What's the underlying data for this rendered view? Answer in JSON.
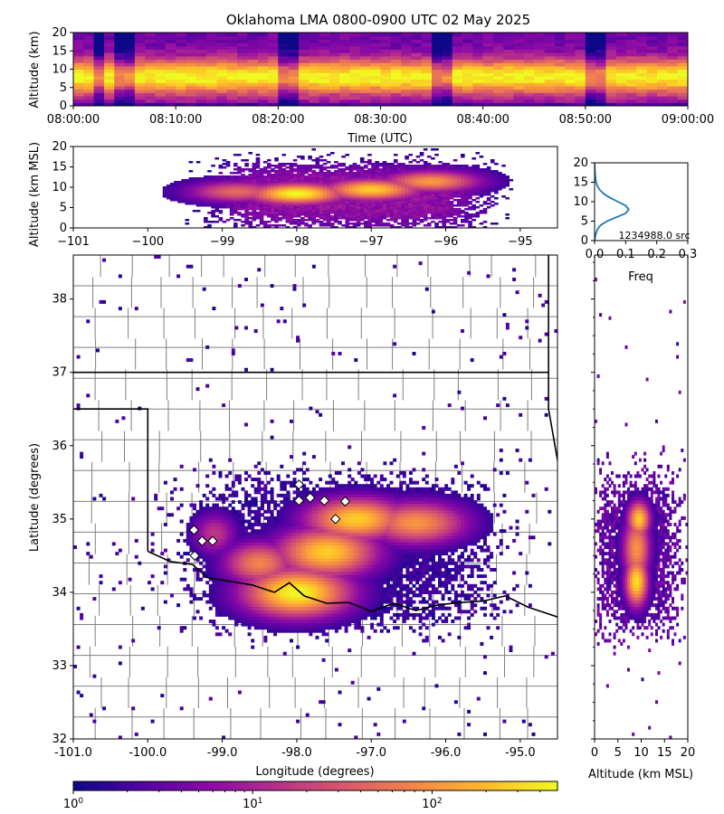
{
  "figure": {
    "title": "Oklahoma LMA 0800-0900 UTC 02 May 2025"
  },
  "chart_data": [
    {
      "id": "time-height",
      "type": "heatmap",
      "xlabel": "Time (UTC)",
      "ylabel": "Altitude (km)",
      "xlim": [
        "08:00:00",
        "09:00:00"
      ],
      "ylim": [
        0,
        20
      ],
      "xticks": [
        "08:00:00",
        "08:10:00",
        "08:20:00",
        "08:30:00",
        "08:40:00",
        "08:50:00",
        "09:00:00"
      ],
      "yticks": [
        "0",
        "5",
        "10",
        "15",
        "20"
      ],
      "colormap": "plasma",
      "color_scale": "log",
      "density_peak_altitude_km": 8,
      "low_density_minutes": [
        2,
        4,
        5,
        20,
        21,
        35,
        36,
        50,
        51
      ]
    },
    {
      "id": "lon-alt",
      "type": "heatmap",
      "xlabel": "",
      "ylabel": "Altitude (km MSL)",
      "xlim": [
        -101,
        -94.5
      ],
      "ylim": [
        0,
        20
      ],
      "xticks": [
        "−101",
        "−100",
        "−99",
        "−98",
        "−97",
        "−96",
        "−95"
      ],
      "yticks": [
        "0",
        "5",
        "10",
        "15",
        "20"
      ],
      "colormap": "plasma",
      "color_scale": "log",
      "cores": [
        {
          "lon": -98.0,
          "alt": 8.5,
          "intensity": 1.0
        },
        {
          "lon": -97.0,
          "alt": 9.5,
          "intensity": 0.9
        },
        {
          "lon": -96.2,
          "alt": 11.5,
          "intensity": 0.75
        },
        {
          "lon": -98.8,
          "alt": 9.0,
          "intensity": 0.6
        }
      ]
    },
    {
      "id": "alt-histogram",
      "type": "line",
      "xlabel": "Freq",
      "ylabel": "",
      "xlim": [
        0,
        0.3
      ],
      "ylim": [
        0,
        20
      ],
      "xticks": [
        "0.0",
        "0.1",
        "0.2",
        "0.3"
      ],
      "yticks": [
        "0",
        "5",
        "10",
        "15",
        "20"
      ],
      "annotation": "1234988.0 src",
      "series_color": "#1f77b4",
      "x": [
        0.0,
        0.002,
        0.005,
        0.01,
        0.02,
        0.04,
        0.07,
        0.1,
        0.11,
        0.1,
        0.075,
        0.05,
        0.03,
        0.017,
        0.009,
        0.005,
        0.003,
        0.002,
        0.001,
        0.0005,
        0.0
      ],
      "y": [
        0,
        1,
        2,
        3,
        4,
        5,
        6,
        7,
        8,
        9,
        10,
        11,
        12,
        13,
        14,
        15,
        16,
        17,
        18,
        19,
        20
      ]
    },
    {
      "id": "plan-view",
      "type": "heatmap",
      "xlabel": "Longitude (degrees)",
      "ylabel": "Latitude (degrees)",
      "xlim": [
        -101,
        -94.5
      ],
      "ylim": [
        32,
        38.6
      ],
      "xticks": [
        "-101.0",
        "-100.0",
        "-99.0",
        "-98.0",
        "-97.0",
        "-96.0",
        "-95.0"
      ],
      "yticks": [
        "32",
        "33",
        "34",
        "35",
        "36",
        "37",
        "38"
      ],
      "colormap": "plasma",
      "color_scale": "log",
      "stations": [
        {
          "lon": -97.97,
          "lat": 35.47
        },
        {
          "lon": -97.82,
          "lat": 35.29
        },
        {
          "lon": -97.97,
          "lat": 35.25
        },
        {
          "lon": -97.63,
          "lat": 35.25
        },
        {
          "lon": -97.35,
          "lat": 35.24
        },
        {
          "lon": -97.48,
          "lat": 35.0
        },
        {
          "lon": -99.38,
          "lat": 34.85
        },
        {
          "lon": -99.27,
          "lat": 34.7
        },
        {
          "lon": -99.13,
          "lat": 34.7
        },
        {
          "lon": -99.37,
          "lat": 34.5
        }
      ]
    },
    {
      "id": "alt-lat",
      "type": "heatmap",
      "xlabel": "Altitude (km MSL)",
      "ylabel": "",
      "xlim": [
        0,
        20
      ],
      "ylim": [
        32,
        38.6
      ],
      "xticks": [
        "0",
        "5",
        "10",
        "15",
        "20"
      ],
      "yticks": [],
      "colormap": "plasma",
      "color_scale": "log"
    },
    {
      "id": "colorbar",
      "type": "heatmap",
      "colormap": "plasma",
      "color_scale": "log",
      "range": [
        1,
        500
      ],
      "tick_values": [
        1,
        10,
        100
      ],
      "tick_labels": {
        "mantissa": "10",
        "exponents": [
          "0",
          "1",
          "2"
        ]
      }
    }
  ]
}
